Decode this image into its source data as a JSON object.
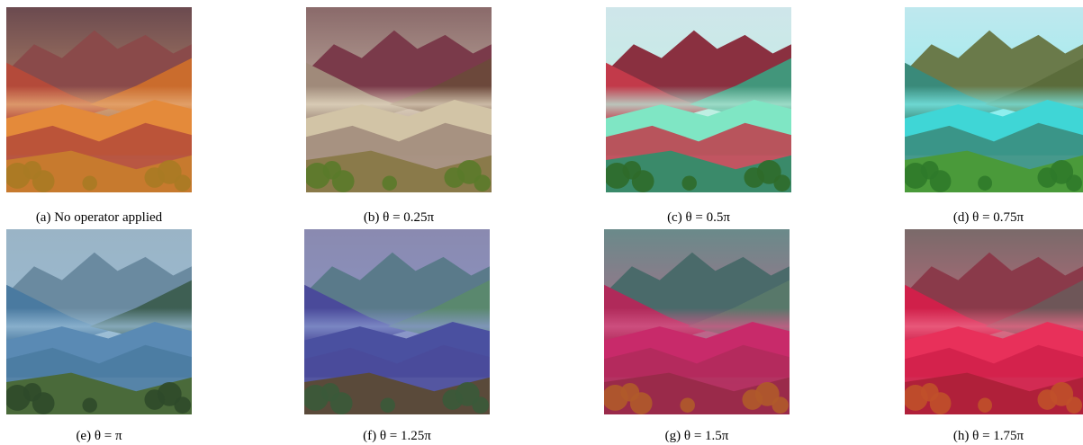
{
  "figure": {
    "panels": [
      {
        "id": "a",
        "caption": "(a) No operator applied",
        "palette": {
          "sky": "#6b4a4f",
          "ridge_far": "#8a4a4a",
          "ridge_mid": "#b44a3a",
          "ridge_near": "#d0702a",
          "valley": "#e48a3a",
          "foreground": "#c77a2e",
          "trees": "#a87a24",
          "haze": "#e9b07a"
        }
      },
      {
        "id": "b",
        "caption": "(b) θ = 0.25π",
        "palette": {
          "sky": "#8a6a6a",
          "ridge_far": "#7a3a4a",
          "ridge_mid": "#a08a7a",
          "ridge_near": "#6a4a3a",
          "valley": "#d2c4a6",
          "foreground": "#8a7a4a",
          "trees": "#5a7a2a",
          "haze": "#eae0c8"
        }
      },
      {
        "id": "c",
        "caption": "(c) θ = 0.5π",
        "palette": {
          "sky": "#cfe6ea",
          "ridge_far": "#8a3040",
          "ridge_mid": "#c23a4a",
          "ridge_near": "#3aa282",
          "valley": "#7fe6c4",
          "foreground": "#3a8a6a",
          "trees": "#2f6a2a",
          "haze": "#b8f2e0"
        }
      },
      {
        "id": "d",
        "caption": "(d) θ = 0.75π",
        "palette": {
          "sky": "#bfe8ee",
          "ridge_far": "#6a7a4a",
          "ridge_mid": "#3a8a7a",
          "ridge_near": "#5a6a3a",
          "valley": "#3fd6d6",
          "foreground": "#4a9a3a",
          "trees": "#2f7a2a",
          "haze": "#7ef0ee"
        }
      },
      {
        "id": "e",
        "caption": "(e) θ = π",
        "palette": {
          "sky": "#9ab4c6",
          "ridge_far": "#6a8aa0",
          "ridge_mid": "#4a7aa0",
          "ridge_near": "#3a5a4a",
          "valley": "#5a8ab4",
          "foreground": "#4a6a3a",
          "trees": "#2f4a2a",
          "haze": "#9cc0da"
        }
      },
      {
        "id": "f",
        "caption": "(f) θ = 1.25π",
        "palette": {
          "sky": "#8a8ab0",
          "ridge_far": "#5a7a8a",
          "ridge_mid": "#4a4a9a",
          "ridge_near": "#5a8a6a",
          "valley": "#4a50a0",
          "foreground": "#5a4a3a",
          "trees": "#3a5a3a",
          "haze": "#8a9ad0"
        }
      },
      {
        "id": "g",
        "caption": "(g) θ = 1.5π",
        "palette": {
          "sky": "#6a8a8a",
          "ridge_far": "#4a6a6a",
          "ridge_mid": "#b02a5a",
          "ridge_near": "#5a7a6a",
          "valley": "#c82a6a",
          "foreground": "#9a2a4a",
          "trees": "#b05a2a",
          "haze": "#d65a8a"
        }
      },
      {
        "id": "h",
        "caption": "(h) θ = 1.75π",
        "palette": {
          "sky": "#7a6a6a",
          "ridge_far": "#8a3a4a",
          "ridge_mid": "#d0204a",
          "ridge_near": "#6a5a5a",
          "valley": "#e8305a",
          "foreground": "#b0203a",
          "trees": "#c0502a",
          "haze": "#f06a8a"
        }
      }
    ]
  }
}
